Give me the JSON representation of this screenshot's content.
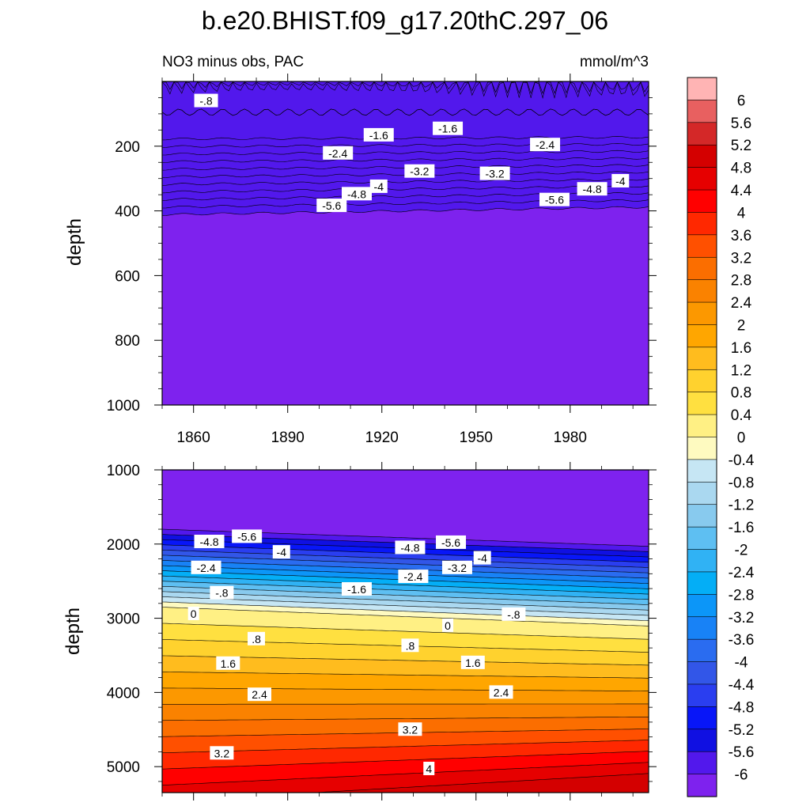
{
  "chart_data": {
    "type": "contour",
    "title": "b.e20.BHIST.f09_g17.20thC.297_06",
    "left_subtitle": "NO3 minus obs, PAC",
    "right_subtitle": "mmol/m^3",
    "ylabel": "depth",
    "xlim": [
      1850,
      2005
    ],
    "x_ticks": [
      1860,
      1890,
      1920,
      1950,
      1980
    ],
    "x_tick_labels": [
      "1860",
      "1890",
      "1920",
      "1950",
      "1980"
    ],
    "upper_panel": {
      "ylim": [
        0,
        1000
      ],
      "y_ticks": [
        200,
        400,
        600,
        800,
        1000
      ],
      "y_tick_labels": [
        "200",
        "400",
        "600",
        "800",
        "1000"
      ],
      "contour_labels": [
        {
          "text": "-.8",
          "x": 1864,
          "y": 60
        },
        {
          "text": "-1.6",
          "x": 1919,
          "y": 166
        },
        {
          "text": "-1.6",
          "x": 1941,
          "y": 146
        },
        {
          "text": "-2.4",
          "x": 1906,
          "y": 222
        },
        {
          "text": "-2.4",
          "x": 1972,
          "y": 196
        },
        {
          "text": "-3.2",
          "x": 1932,
          "y": 278
        },
        {
          "text": "-3.2",
          "x": 1956,
          "y": 285
        },
        {
          "text": "-4",
          "x": 1919,
          "y": 325
        },
        {
          "text": "-4",
          "x": 1996,
          "y": 308
        },
        {
          "text": "-4.8",
          "x": 1912,
          "y": 348
        },
        {
          "text": "-4.8",
          "x": 1987,
          "y": 333
        },
        {
          "text": "-5.6",
          "x": 1904,
          "y": 384
        },
        {
          "text": "-5.6",
          "x": 1975,
          "y": 366
        }
      ]
    },
    "lower_panel": {
      "ylim": [
        1000,
        5350
      ],
      "y_ticks": [
        1000,
        2000,
        3000,
        4000,
        5000
      ],
      "y_tick_labels": [
        "1000",
        "2000",
        "3000",
        "4000",
        "5000"
      ],
      "contour_labels": [
        {
          "text": "-4.8",
          "x": 1865,
          "y": 1970
        },
        {
          "text": "-5.6",
          "x": 1877,
          "y": 1900
        },
        {
          "text": "-4",
          "x": 1888,
          "y": 2110
        },
        {
          "text": "-2.4",
          "x": 1864,
          "y": 2320
        },
        {
          "text": "-.8",
          "x": 1869,
          "y": 2660
        },
        {
          "text": "0",
          "x": 1860,
          "y": 2940
        },
        {
          "text": ".8",
          "x": 1880,
          "y": 3280
        },
        {
          "text": "1.6",
          "x": 1871,
          "y": 3610
        },
        {
          "text": "2.4",
          "x": 1881,
          "y": 4030
        },
        {
          "text": "3.2",
          "x": 1869,
          "y": 4820
        },
        {
          "text": "-4.8",
          "x": 1929,
          "y": 2050
        },
        {
          "text": "-5.6",
          "x": 1942,
          "y": 1980
        },
        {
          "text": "-4",
          "x": 1952,
          "y": 2190
        },
        {
          "text": "-3.2",
          "x": 1944,
          "y": 2320
        },
        {
          "text": "-2.4",
          "x": 1930,
          "y": 2440
        },
        {
          "text": "-1.6",
          "x": 1912,
          "y": 2610
        },
        {
          "text": "-.8",
          "x": 1962,
          "y": 2950
        },
        {
          "text": "0",
          "x": 1941,
          "y": 3100
        },
        {
          "text": ".8",
          "x": 1929,
          "y": 3370
        },
        {
          "text": "1.6",
          "x": 1949,
          "y": 3600
        },
        {
          "text": "2.4",
          "x": 1958,
          "y": 4000
        },
        {
          "text": "3.2",
          "x": 1929,
          "y": 4500
        },
        {
          "text": "4",
          "x": 1935,
          "y": 5030
        }
      ]
    },
    "colorbar": {
      "labels": [
        "6",
        "5.6",
        "5.2",
        "4.8",
        "4.4",
        "4",
        "3.6",
        "3.2",
        "2.8",
        "2.4",
        "2",
        "1.6",
        "1.2",
        "0.8",
        "0.4",
        "0",
        "-0.4",
        "-0.8",
        "-1.2",
        "-1.6",
        "-2",
        "-2.4",
        "-2.8",
        "-3.2",
        "-3.6",
        "-4",
        "-4.4",
        "-4.8",
        "-5.2",
        "-5.6",
        "-6"
      ],
      "colors_top_to_bottom": [
        "#ffb4b4",
        "#e86060",
        "#d42828",
        "#d40000",
        "#e60000",
        "#ff0000",
        "#ff2800",
        "#ff5000",
        "#fb6e00",
        "#fa8200",
        "#fc9800",
        "#ffa600",
        "#ffbc1e",
        "#ffd22e",
        "#ffe040",
        "#fff084",
        "#fefac0",
        "#c6e6f4",
        "#aad8f0",
        "#88caee",
        "#5ebff2",
        "#30b2f4",
        "#04aef6",
        "#0c96f8",
        "#1882f6",
        "#2a6cf0",
        "#3256e8",
        "#2a3ef0",
        "#0816f8",
        "#1010e2",
        "#5218ec",
        "#7e22ee"
      ]
    }
  }
}
